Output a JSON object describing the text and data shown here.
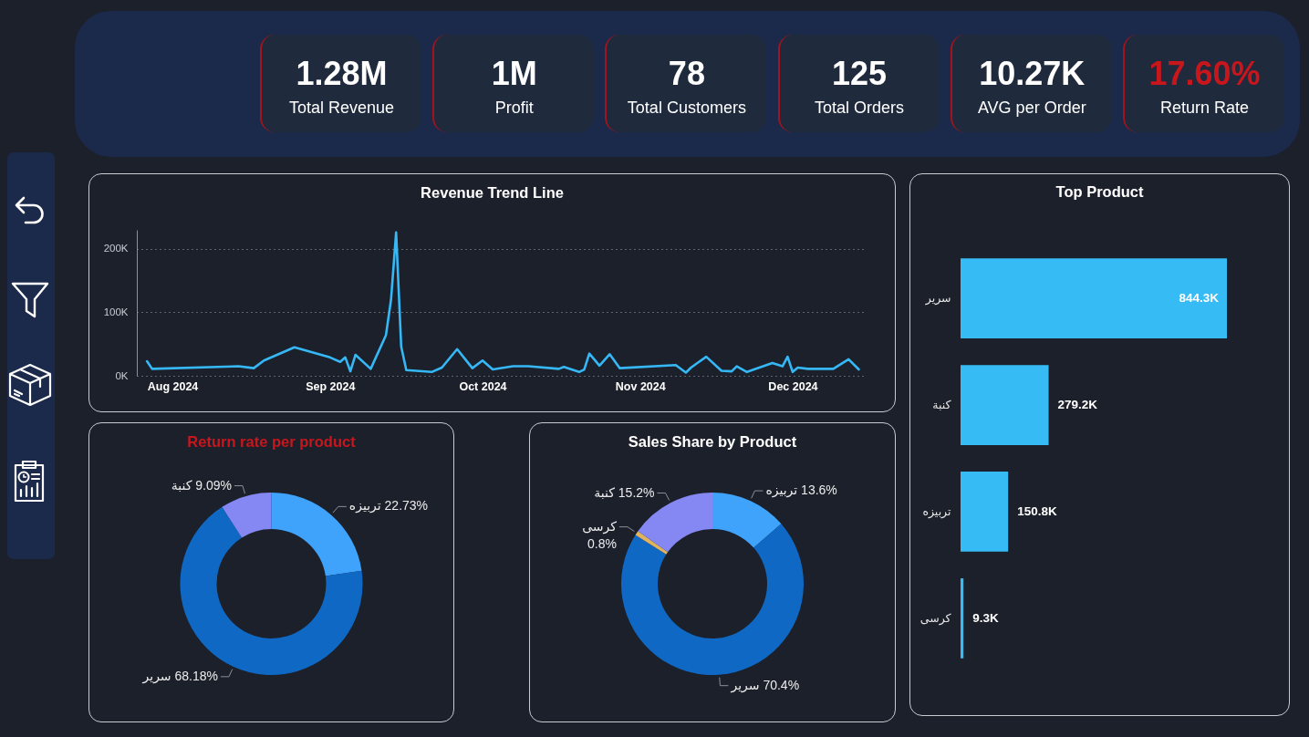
{
  "chart_data": [
    {
      "type": "other",
      "categories": [
        "Total Revenue",
        "Profit",
        "Total Customers",
        "Total Orders",
        "AVG per Order",
        "Return Rate"
      ],
      "annotations": [
        "1.28M",
        "1M",
        "78",
        "125",
        "10.27K",
        "17.60%"
      ],
      "colors": [
        "#ffffff",
        "#ffffff",
        "#ffffff",
        "#ffffff",
        "#ffffff",
        "#c8161d"
      ]
    },
    {
      "type": "line",
      "title": "Revenue Trend Line",
      "x": [
        "2024-07-27",
        "2024-07-28",
        "2024-08-14",
        "2024-08-17",
        "2024-08-19",
        "2024-08-25",
        "2024-09-01",
        "2024-09-03",
        "2024-09-04",
        "2024-09-05",
        "2024-09-06",
        "2024-09-09",
        "2024-09-12",
        "2024-09-13",
        "2024-09-14",
        "2024-09-15",
        "2024-09-16",
        "2024-09-21",
        "2024-09-23",
        "2024-09-26",
        "2024-09-29",
        "2024-10-01",
        "2024-10-03",
        "2024-10-07",
        "2024-10-10",
        "2024-10-16",
        "2024-10-17",
        "2024-10-20",
        "2024-10-21",
        "2024-10-22",
        "2024-10-24",
        "2024-10-26",
        "2024-10-28",
        "2024-11-08",
        "2024-11-10",
        "2024-11-11",
        "2024-11-14",
        "2024-11-17",
        "2024-11-19",
        "2024-11-20",
        "2024-11-22",
        "2024-11-27",
        "2024-11-29",
        "2024-11-30",
        "2024-12-01",
        "2024-12-02",
        "2024-12-04",
        "2024-12-09",
        "2024-12-12",
        "2024-12-14"
      ],
      "values": [
        23000,
        11000,
        15000,
        12000,
        24000,
        45000,
        29000,
        22000,
        29000,
        7000,
        33000,
        11000,
        64000,
        120000,
        226000,
        46000,
        9000,
        6000,
        13000,
        42000,
        12000,
        24000,
        10000,
        15000,
        15000,
        11000,
        14000,
        6000,
        10000,
        35000,
        16000,
        34000,
        12000,
        17000,
        5000,
        13000,
        30000,
        8000,
        7000,
        15000,
        6000,
        20000,
        15000,
        30000,
        6000,
        13000,
        11000,
        11000,
        26000,
        10000
      ],
      "color": "#35b8f5",
      "xlim": [
        "2024-07-25",
        "2024-12-15"
      ],
      "xticks": [
        {
          "value": "2024-08-01",
          "label": "Aug 2024"
        },
        {
          "value": "2024-09-01",
          "label": "Sep 2024"
        },
        {
          "value": "2024-10-01",
          "label": "Oct 2024"
        },
        {
          "value": "2024-11-01",
          "label": "Nov 2024"
        },
        {
          "value": "2024-12-01",
          "label": "Dec 2024"
        }
      ],
      "ylim": [
        0,
        230000
      ],
      "yticks": [
        {
          "value": 0,
          "label": "0K"
        },
        {
          "value": 100000,
          "label": "100K"
        },
        {
          "value": 200000,
          "label": "200K"
        }
      ],
      "grid": "y"
    },
    {
      "type": "bar",
      "orientation": "horizontal",
      "title": "Top Product",
      "categories": [
        "سرير",
        "كنبة",
        "تربيزه",
        "كرسى"
      ],
      "values": [
        844300,
        279200,
        150800,
        9300
      ],
      "value_labels": [
        "844.3K",
        "279.2K",
        "150.8K",
        "9.3K"
      ],
      "color": "#37bbf5",
      "tick_labels": "y"
    },
    {
      "type": "donut",
      "title": "Return rate per product",
      "categories": [
        "تربيزه",
        "سرير",
        "كنبة"
      ],
      "values": [
        22.73,
        68.18,
        9.09
      ],
      "value_labels": [
        "22.73%",
        "68.18%",
        "9.09%"
      ],
      "colors": [
        "#3fa3fc",
        "#0f69c4",
        "#8588f3"
      ]
    },
    {
      "type": "donut",
      "title": "Sales Share by Product",
      "categories": [
        "تربيزه",
        "سرير",
        "كرسى",
        "كنبة"
      ],
      "values": [
        13.6,
        70.4,
        0.8,
        15.2
      ],
      "value_labels": [
        "13.6%",
        "70.4%",
        "0.8%",
        "15.2%"
      ],
      "colors": [
        "#3fa3fc",
        "#0f69c4",
        "#e0b35e",
        "#8588f3"
      ]
    }
  ]
}
